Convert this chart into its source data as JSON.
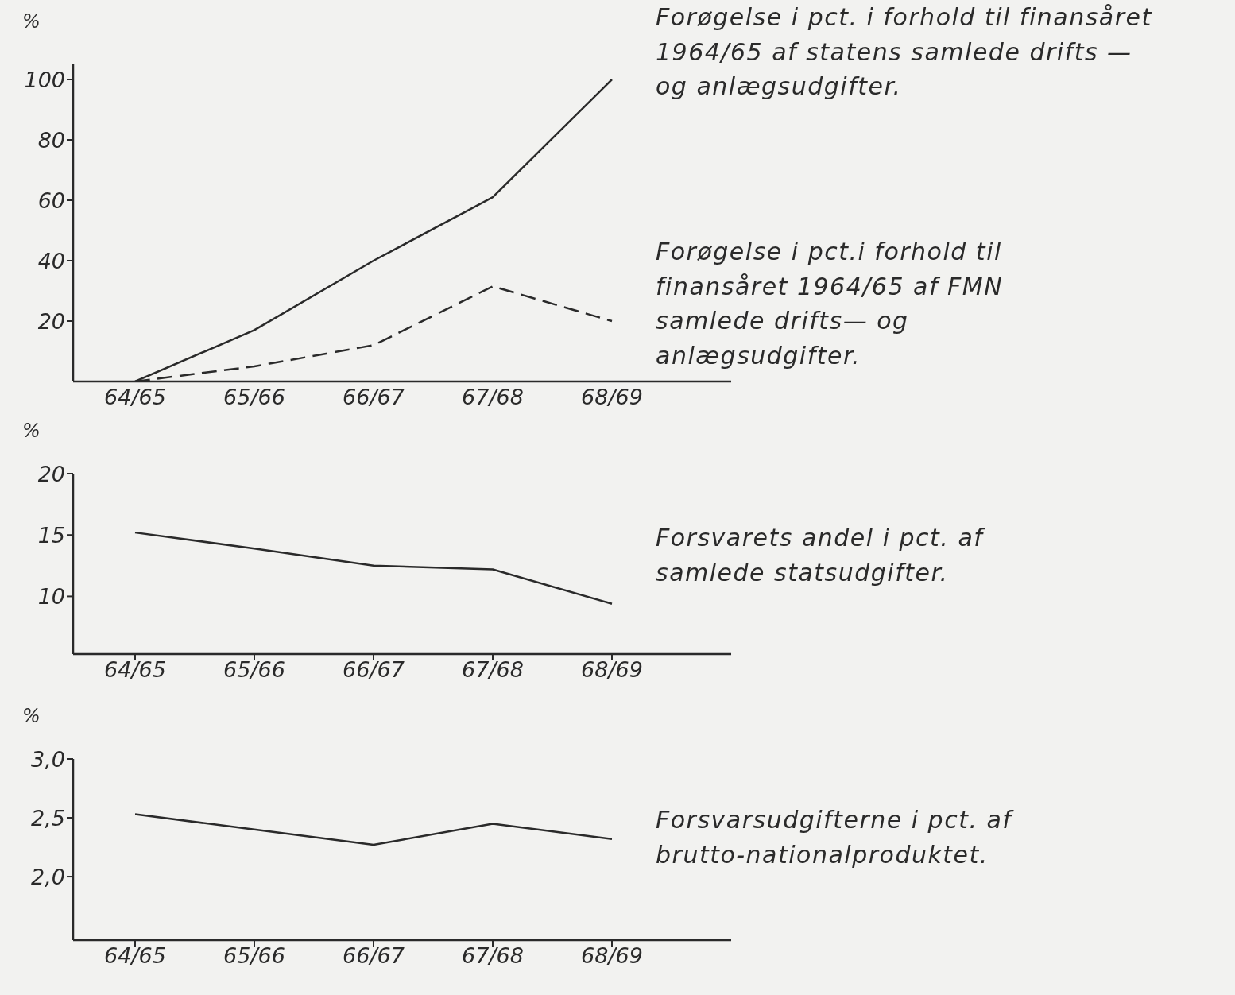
{
  "chart_data": [
    {
      "type": "line",
      "ylabel": "%",
      "categories": [
        "64/65",
        "65/66",
        "66/67",
        "67/68",
        "68/69"
      ],
      "series": [
        {
          "color": "#2a2a2a",
          "line_style": "solid",
          "values": [
            0,
            17,
            40,
            61,
            100
          ]
        },
        {
          "color": "#2a2a2a",
          "line_style": "dashed",
          "values": [
            0,
            5,
            12,
            31.5,
            20
          ]
        }
      ],
      "ylim": [
        0,
        105
      ],
      "yticks": [
        20,
        40,
        60,
        80,
        100
      ],
      "grid": false,
      "legend": false,
      "annotations": [
        "Forøgelse i pct. i forhold til finansåret 1964/65 af statens samlede drifts — og anlægsudgifter.",
        "Forøgelse i pct.i forhold til finansåret 1964/65 af FMN samlede drifts— og anlægsudgifter."
      ]
    },
    {
      "type": "line",
      "ylabel": "%",
      "categories": [
        "64/65",
        "65/66",
        "66/67",
        "67/68",
        "68/69"
      ],
      "series": [
        {
          "color": "#2a2a2a",
          "line_style": "solid",
          "values": [
            15.2,
            13.9,
            12.5,
            12.2,
            9.4
          ]
        }
      ],
      "ylim": [
        5.3,
        20
      ],
      "yticks": [
        10,
        15,
        20
      ],
      "grid": false,
      "legend": false,
      "annotations": [
        "Forsvarets andel i pct. af samlede statsudgifter."
      ]
    },
    {
      "type": "line",
      "ylabel": "%",
      "categories": [
        "64/65",
        "65/66",
        "66/67",
        "67/68",
        "68/69"
      ],
      "series": [
        {
          "color": "#2a2a2a",
          "line_style": "solid",
          "values": [
            2.53,
            2.4,
            2.27,
            2.45,
            2.32
          ]
        }
      ],
      "ylim": [
        1.46,
        3
      ],
      "yticks": [
        {
          "value": 2,
          "label": "2,0"
        },
        {
          "value": 2.5,
          "label": "2,5"
        },
        {
          "value": 3,
          "label": "3,0"
        }
      ],
      "grid": false,
      "legend": false,
      "annotations": [
        "Forsvarsudgifterne i pct. af brutto-nationalproduktet."
      ]
    }
  ]
}
